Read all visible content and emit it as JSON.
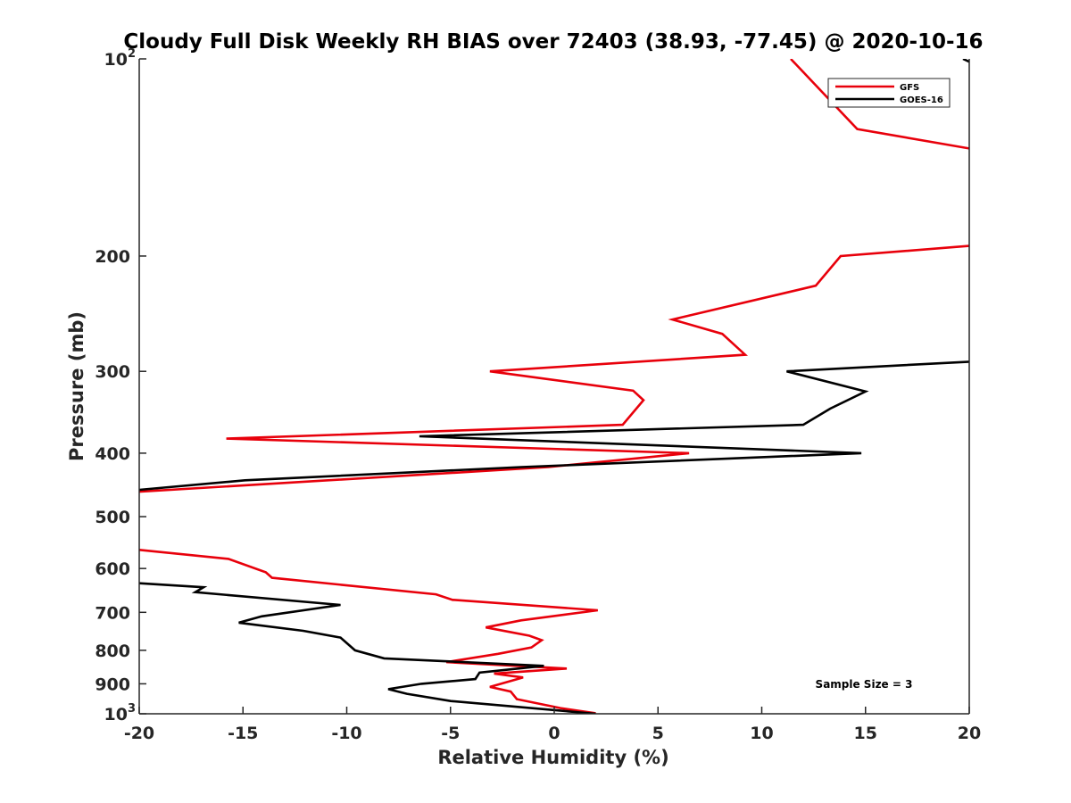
{
  "chart_data": {
    "type": "line",
    "title": "Cloudy Full Disk Weekly RH BIAS over 72403 (38.93, -77.45) @ 2020-10-16",
    "xlabel": "Relative Humidity (%)",
    "ylabel": "Pressure (mb)",
    "xlim": [
      -20,
      20
    ],
    "ylim": [
      100,
      1000
    ],
    "y_scale": "log",
    "y_reversed": true,
    "grid": false,
    "legend_position": "top-right",
    "x_ticks": [
      "-20",
      "-15",
      "-10",
      "-5",
      "0",
      "5",
      "10",
      "15",
      "20"
    ],
    "x_tick_values": [
      -20,
      -15,
      -10,
      -5,
      0,
      5,
      10,
      15,
      20
    ],
    "y_ticks": [
      {
        "value": 100,
        "base": "10",
        "exp": "2"
      },
      {
        "value": 200,
        "label": "200"
      },
      {
        "value": 300,
        "label": "300"
      },
      {
        "value": 400,
        "label": "400"
      },
      {
        "value": 500,
        "label": "500"
      },
      {
        "value": 600,
        "label": "600"
      },
      {
        "value": 700,
        "label": "700"
      },
      {
        "value": 800,
        "label": "800"
      },
      {
        "value": 900,
        "label": "900"
      },
      {
        "value": 1000,
        "base": "10",
        "exp": "3"
      }
    ],
    "series": [
      {
        "name": "GFS",
        "color": "#e8000b",
        "segments": [
          [
            [
              11.4,
              100
            ],
            [
              14.6,
              128
            ],
            [
              20,
              137
            ]
          ],
          [
            [
              20,
              193
            ],
            [
              13.8,
              200
            ],
            [
              12.6,
              222
            ],
            [
              5.7,
              250
            ],
            [
              8.1,
              263
            ],
            [
              9.2,
              283
            ],
            [
              -3.1,
              300
            ],
            [
              3.8,
              321
            ],
            [
              4.3,
              332
            ],
            [
              3.3,
              362
            ],
            [
              -15.8,
              380
            ],
            [
              6.5,
              400
            ],
            [
              -0.3,
              420
            ],
            [
              -20,
              458
            ]
          ],
          [
            [
              -20,
              562
            ],
            [
              -15.7,
              580
            ],
            [
              -13.9,
              608
            ],
            [
              -13.6,
              620
            ],
            [
              -5.7,
              657
            ],
            [
              -4.9,
              670
            ],
            [
              2.1,
              695
            ],
            [
              -1.6,
              720
            ],
            [
              -3.3,
              738
            ],
            [
              -1.2,
              760
            ],
            [
              -0.6,
              772
            ],
            [
              -1.1,
              792
            ],
            [
              -2.7,
              810
            ],
            [
              -5.2,
              834
            ],
            [
              0.6,
              853
            ],
            [
              -2.9,
              868
            ],
            [
              -1.5,
              880
            ],
            [
              -3.1,
              910
            ],
            [
              -2.1,
              925
            ],
            [
              -1.8,
              950
            ],
            [
              0.3,
              980
            ],
            [
              2.0,
              998
            ]
          ]
        ]
      },
      {
        "name": "GOES-16",
        "color": "#000000",
        "segments": [
          [
            [
              19.7,
              100
            ],
            [
              20,
              101
            ]
          ],
          [
            [
              20,
              290
            ],
            [
              11.2,
              300
            ],
            [
              15.0,
              322
            ],
            [
              13.3,
              342
            ],
            [
              12.0,
              362
            ],
            [
              -6.5,
              377
            ],
            [
              14.8,
              400
            ],
            [
              -1.6,
              420
            ],
            [
              -14.9,
              440
            ],
            [
              -20,
              455
            ]
          ],
          [
            [
              -20,
              632
            ],
            [
              -16.9,
              641
            ],
            [
              -17.3,
              652
            ],
            [
              -10.3,
              682
            ],
            [
              -14.1,
              710
            ],
            [
              -15.2,
              726
            ],
            [
              -12.1,
              747
            ],
            [
              -10.3,
              765
            ],
            [
              -9.6,
              800
            ],
            [
              -8.2,
              823
            ],
            [
              -0.5,
              845
            ],
            [
              -3.6,
              865
            ],
            [
              -3.8,
              885
            ],
            [
              -6.4,
              900
            ],
            [
              -8.0,
              917
            ],
            [
              -7.1,
              932
            ],
            [
              -5.0,
              956
            ],
            [
              2.0,
              1000
            ]
          ]
        ]
      }
    ],
    "annotation": "Sample Size = 3"
  }
}
